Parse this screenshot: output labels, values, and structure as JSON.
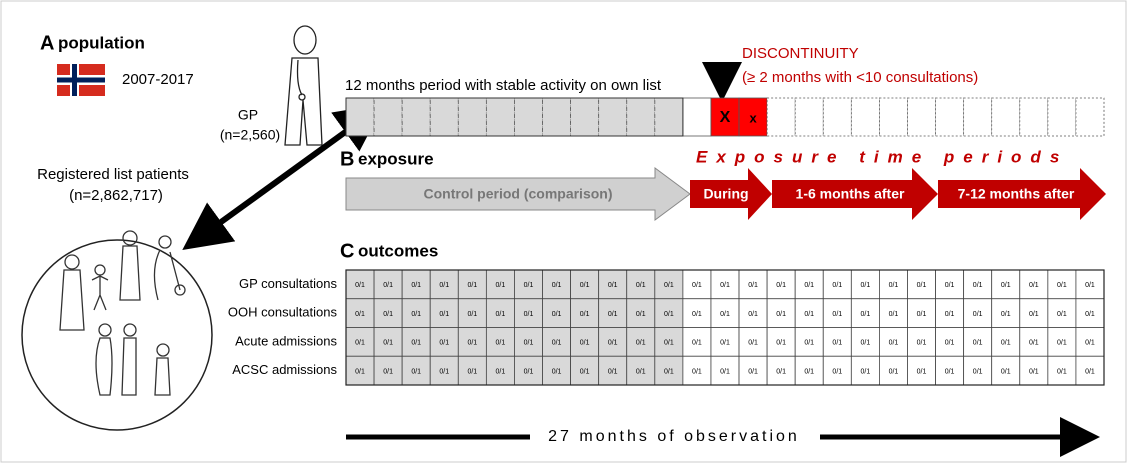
{
  "panel_a": {
    "letter": "A",
    "title": "population",
    "years": "2007-2017",
    "gp_label": "GP",
    "gp_n": "(n=2,560)",
    "patients_label": "Registered list patients",
    "patients_n": "(n=2,862,717)"
  },
  "timeline": {
    "caption": "12 months period with stable activity on own list",
    "discontinuity_title": "DISCONTINUITY",
    "discontinuity_note": "(≥ 2 months with <10 consultations)",
    "marks": [
      "X",
      "x"
    ]
  },
  "panel_b": {
    "letter": "B",
    "title": "exposure",
    "periods_title": "Exposure time periods",
    "periods": [
      "Control period (comparison)",
      "During",
      "1-6 months after",
      "7-12 months after"
    ]
  },
  "panel_c": {
    "letter": "C",
    "title": "outcomes",
    "rows": [
      {
        "label": "GP consultations",
        "cells": [
          "0/1",
          "0/1",
          "0/1",
          "0/1",
          "0/1",
          "0/1",
          "0/1",
          "0/1",
          "0/1",
          "0/1",
          "0/1",
          "0/1",
          "0/1",
          "0/1",
          "0/1",
          "0/1",
          "0/1",
          "0/1",
          "0/1",
          "0/1",
          "0/1",
          "0/1",
          "0/1",
          "0/1",
          "0/1",
          "0/1",
          "0/1"
        ]
      },
      {
        "label": "OOH consultations",
        "cells": [
          "0/1",
          "0/1",
          "0/1",
          "0/1",
          "0/1",
          "0/1",
          "0/1",
          "0/1",
          "0/1",
          "0/1",
          "0/1",
          "0/1",
          "0/1",
          "0/1",
          "0/1",
          "0/1",
          "0/1",
          "0/1",
          "0/1",
          "0/1",
          "0/1",
          "0/1",
          "0/1",
          "0/1",
          "0/1",
          "0/1",
          "0/1"
        ]
      },
      {
        "label": "Acute admissions",
        "cells": [
          "0/1",
          "0/1",
          "0/1",
          "0/1",
          "0/1",
          "0/1",
          "0/1",
          "0/1",
          "0/1",
          "0/1",
          "0/1",
          "0/1",
          "0/1",
          "0/1",
          "0/1",
          "0/1",
          "0/1",
          "0/1",
          "0/1",
          "0/1",
          "0/1",
          "0/1",
          "0/1",
          "0/1",
          "0/1",
          "0/1",
          "0/1"
        ]
      },
      {
        "label": "ACSC admissions",
        "cells": [
          "0/1",
          "0/1",
          "0/1",
          "0/1",
          "0/1",
          "0/1",
          "0/1",
          "0/1",
          "0/1",
          "0/1",
          "0/1",
          "0/1",
          "0/1",
          "0/1",
          "0/1",
          "0/1",
          "0/1",
          "0/1",
          "0/1",
          "0/1",
          "0/1",
          "0/1",
          "0/1",
          "0/1",
          "0/1",
          "0/1",
          "0/1"
        ]
      }
    ],
    "observation": "27 months of observation"
  }
}
